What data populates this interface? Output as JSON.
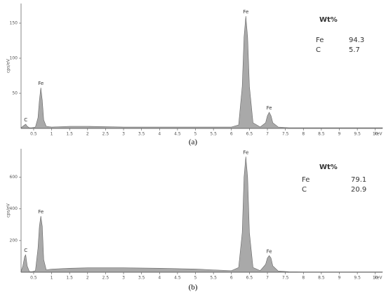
{
  "chart_data": [
    {
      "type": "area",
      "label": "(a)",
      "x_label": "keV",
      "y_label": "cps/eV",
      "fill": "#a9a9a9",
      "stroke": "#666666",
      "x": [
        0.15,
        0.2,
        0.25,
        0.28,
        0.32,
        0.38,
        0.45,
        0.55,
        0.62,
        0.66,
        0.7,
        0.74,
        0.78,
        0.85,
        1,
        1.5,
        2,
        3,
        4,
        5,
        5.5,
        6,
        6.2,
        6.3,
        6.35,
        6.4,
        6.45,
        6.5,
        6.6,
        6.8,
        6.95,
        7.0,
        7.05,
        7.1,
        7.15,
        7.3,
        7.6,
        8,
        9,
        10.2
      ],
      "values": [
        1,
        3,
        5,
        6,
        3,
        1,
        1,
        2,
        15,
        40,
        58,
        40,
        12,
        3,
        2,
        3,
        3,
        2,
        2,
        2,
        2,
        2,
        5,
        60,
        130,
        160,
        130,
        60,
        8,
        2,
        8,
        18,
        23,
        18,
        8,
        2,
        1,
        1,
        1,
        1
      ],
      "xlim": [
        0.15,
        10.2
      ],
      "xticks": [
        0.5,
        1,
        1.5,
        2,
        2.5,
        3,
        3.5,
        4,
        4.5,
        5,
        5.5,
        6,
        6.5,
        7,
        7.5,
        8,
        8.5,
        9,
        9.5,
        10
      ],
      "ylim": [
        0,
        178
      ],
      "yticks": [
        50,
        100,
        150
      ],
      "annotations": [
        {
          "text": "C",
          "x": 0.28
        },
        {
          "text": "Fe",
          "x": 0.7
        },
        {
          "text": "Fe",
          "x": 6.4
        },
        {
          "text": "Fe",
          "x": 7.05
        }
      ],
      "table": {
        "title": "Wt%",
        "rows": [
          [
            "Fe",
            94.3
          ],
          [
            "C",
            5.7
          ]
        ]
      }
    },
    {
      "type": "area",
      "label": "(b)",
      "x_label": "keV",
      "y_label": "cps/eV",
      "fill": "#a9a9a9",
      "stroke": "#666666",
      "x": [
        0.15,
        0.2,
        0.25,
        0.28,
        0.32,
        0.38,
        0.45,
        0.55,
        0.62,
        0.66,
        0.7,
        0.74,
        0.78,
        0.85,
        1,
        1.5,
        2,
        3,
        4,
        5,
        5.5,
        6,
        6.2,
        6.3,
        6.35,
        6.4,
        6.45,
        6.5,
        6.6,
        6.8,
        6.95,
        7.0,
        7.05,
        7.1,
        7.15,
        7.3,
        7.6,
        8,
        9,
        10.2
      ],
      "values": [
        5,
        40,
        100,
        110,
        40,
        5,
        3,
        10,
        150,
        290,
        355,
        290,
        80,
        15,
        20,
        25,
        28,
        28,
        25,
        20,
        15,
        10,
        30,
        250,
        600,
        730,
        600,
        250,
        30,
        10,
        50,
        90,
        105,
        90,
        40,
        8,
        3,
        2,
        2,
        2
      ],
      "xlim": [
        0.15,
        10.2
      ],
      "xticks": [
        0.5,
        1,
        1.5,
        2,
        2.5,
        3,
        3.5,
        4,
        4.5,
        5,
        5.5,
        6,
        6.5,
        7,
        7.5,
        8,
        8.5,
        9,
        9.5,
        10
      ],
      "ylim": [
        0,
        780
      ],
      "yticks": [
        200,
        400,
        600
      ],
      "annotations": [
        {
          "text": "C",
          "x": 0.28
        },
        {
          "text": "Fe",
          "x": 0.7
        },
        {
          "text": "Fe",
          "x": 6.4
        },
        {
          "text": "Fe",
          "x": 7.05
        }
      ],
      "table": {
        "title": "Wt%",
        "rows": [
          [
            "Fe",
            79.1
          ],
          [
            "C",
            20.9
          ]
        ]
      }
    }
  ]
}
